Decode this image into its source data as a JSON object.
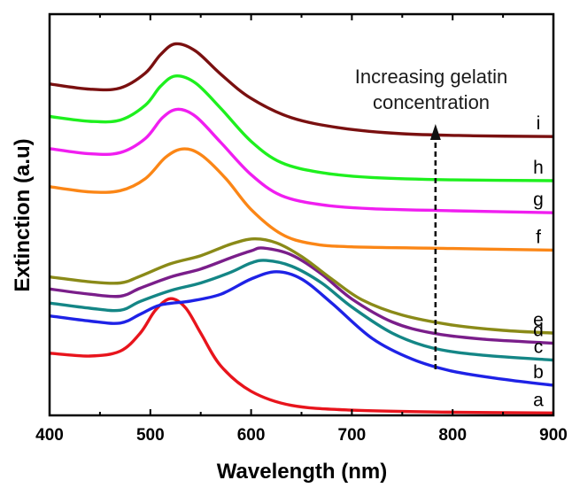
{
  "chart_data": {
    "type": "line",
    "title": "",
    "xlabel": "Wavelength (nm)",
    "ylabel": "Extinction (a.u)",
    "xlim": [
      400,
      900
    ],
    "ylim": [
      0,
      1
    ],
    "x_ticks": [
      "400",
      "500",
      "600",
      "700",
      "800",
      "900"
    ],
    "y_ticks_shown": false,
    "grid": false,
    "annotation": {
      "line1": "Increasing gelatin",
      "line2": "concentration",
      "arrow_x": 783
    },
    "series": [
      {
        "name": "a",
        "label": "a",
        "color": "#e8141c",
        "points": [
          [
            400,
            0.155
          ],
          [
            440,
            0.148
          ],
          [
            470,
            0.16
          ],
          [
            490,
            0.205
          ],
          [
            505,
            0.262
          ],
          [
            520,
            0.291
          ],
          [
            535,
            0.268
          ],
          [
            550,
            0.205
          ],
          [
            570,
            0.123
          ],
          [
            600,
            0.06
          ],
          [
            640,
            0.025
          ],
          [
            700,
            0.013
          ],
          [
            800,
            0.008
          ],
          [
            900,
            0.006
          ]
        ]
      },
      {
        "name": "b",
        "label": "b",
        "color": "#1e22e6",
        "points": [
          [
            400,
            0.248
          ],
          [
            440,
            0.235
          ],
          [
            470,
            0.23
          ],
          [
            490,
            0.252
          ],
          [
            510,
            0.275
          ],
          [
            540,
            0.285
          ],
          [
            570,
            0.302
          ],
          [
            600,
            0.34
          ],
          [
            625,
            0.358
          ],
          [
            650,
            0.34
          ],
          [
            680,
            0.28
          ],
          [
            720,
            0.192
          ],
          [
            760,
            0.14
          ],
          [
            800,
            0.11
          ],
          [
            850,
            0.09
          ],
          [
            900,
            0.075
          ]
        ]
      },
      {
        "name": "c",
        "label": "c",
        "color": "#148686",
        "points": [
          [
            400,
            0.28
          ],
          [
            440,
            0.267
          ],
          [
            470,
            0.262
          ],
          [
            490,
            0.284
          ],
          [
            520,
            0.311
          ],
          [
            550,
            0.33
          ],
          [
            580,
            0.357
          ],
          [
            600,
            0.38
          ],
          [
            615,
            0.386
          ],
          [
            640,
            0.372
          ],
          [
            670,
            0.33
          ],
          [
            700,
            0.27
          ],
          [
            740,
            0.205
          ],
          [
            780,
            0.168
          ],
          [
            830,
            0.15
          ],
          [
            900,
            0.138
          ]
        ]
      },
      {
        "name": "d",
        "label": "d",
        "color": "#7a1e8a",
        "points": [
          [
            400,
            0.315
          ],
          [
            440,
            0.302
          ],
          [
            470,
            0.297
          ],
          [
            490,
            0.317
          ],
          [
            520,
            0.345
          ],
          [
            550,
            0.365
          ],
          [
            580,
            0.393
          ],
          [
            600,
            0.41
          ],
          [
            612,
            0.417
          ],
          [
            640,
            0.4
          ],
          [
            670,
            0.352
          ],
          [
            700,
            0.29
          ],
          [
            740,
            0.233
          ],
          [
            780,
            0.205
          ],
          [
            830,
            0.19
          ],
          [
            900,
            0.18
          ]
        ]
      },
      {
        "name": "e",
        "label": "e",
        "color": "#8a8a18",
        "points": [
          [
            400,
            0.345
          ],
          [
            440,
            0.333
          ],
          [
            470,
            0.33
          ],
          [
            490,
            0.347
          ],
          [
            520,
            0.378
          ],
          [
            550,
            0.398
          ],
          [
            580,
            0.427
          ],
          [
            603,
            0.44
          ],
          [
            625,
            0.43
          ],
          [
            650,
            0.396
          ],
          [
            680,
            0.34
          ],
          [
            710,
            0.288
          ],
          [
            750,
            0.25
          ],
          [
            800,
            0.225
          ],
          [
            850,
            0.212
          ],
          [
            900,
            0.205
          ]
        ]
      },
      {
        "name": "f",
        "label": "f",
        "color": "#fb8616",
        "points": [
          [
            400,
            0.57
          ],
          [
            440,
            0.557
          ],
          [
            470,
            0.56
          ],
          [
            495,
            0.59
          ],
          [
            515,
            0.643
          ],
          [
            532,
            0.664
          ],
          [
            550,
            0.65
          ],
          [
            575,
            0.59
          ],
          [
            600,
            0.513
          ],
          [
            630,
            0.452
          ],
          [
            660,
            0.428
          ],
          [
            700,
            0.42
          ],
          [
            800,
            0.416
          ],
          [
            900,
            0.412
          ]
        ]
      },
      {
        "name": "g",
        "label": "g",
        "color": "#f01ef0",
        "points": [
          [
            400,
            0.665
          ],
          [
            440,
            0.652
          ],
          [
            470,
            0.655
          ],
          [
            495,
            0.69
          ],
          [
            512,
            0.742
          ],
          [
            527,
            0.763
          ],
          [
            545,
            0.745
          ],
          [
            570,
            0.68
          ],
          [
            600,
            0.6
          ],
          [
            630,
            0.548
          ],
          [
            670,
            0.525
          ],
          [
            720,
            0.515
          ],
          [
            800,
            0.51
          ],
          [
            900,
            0.505
          ]
        ]
      },
      {
        "name": "h",
        "label": "h",
        "color": "#1ef01e",
        "points": [
          [
            400,
            0.745
          ],
          [
            440,
            0.733
          ],
          [
            470,
            0.736
          ],
          [
            495,
            0.773
          ],
          [
            510,
            0.82
          ],
          [
            525,
            0.846
          ],
          [
            545,
            0.828
          ],
          [
            570,
            0.765
          ],
          [
            600,
            0.683
          ],
          [
            630,
            0.63
          ],
          [
            670,
            0.605
          ],
          [
            720,
            0.593
          ],
          [
            800,
            0.587
          ],
          [
            900,
            0.585
          ]
        ]
      },
      {
        "name": "i",
        "label": "i",
        "color": "#7a1010",
        "points": [
          [
            400,
            0.826
          ],
          [
            440,
            0.813
          ],
          [
            470,
            0.816
          ],
          [
            495,
            0.853
          ],
          [
            510,
            0.899
          ],
          [
            525,
            0.926
          ],
          [
            545,
            0.908
          ],
          [
            570,
            0.85
          ],
          [
            600,
            0.79
          ],
          [
            640,
            0.742
          ],
          [
            690,
            0.716
          ],
          [
            750,
            0.702
          ],
          [
            820,
            0.697
          ],
          [
            900,
            0.695
          ]
        ]
      }
    ]
  }
}
